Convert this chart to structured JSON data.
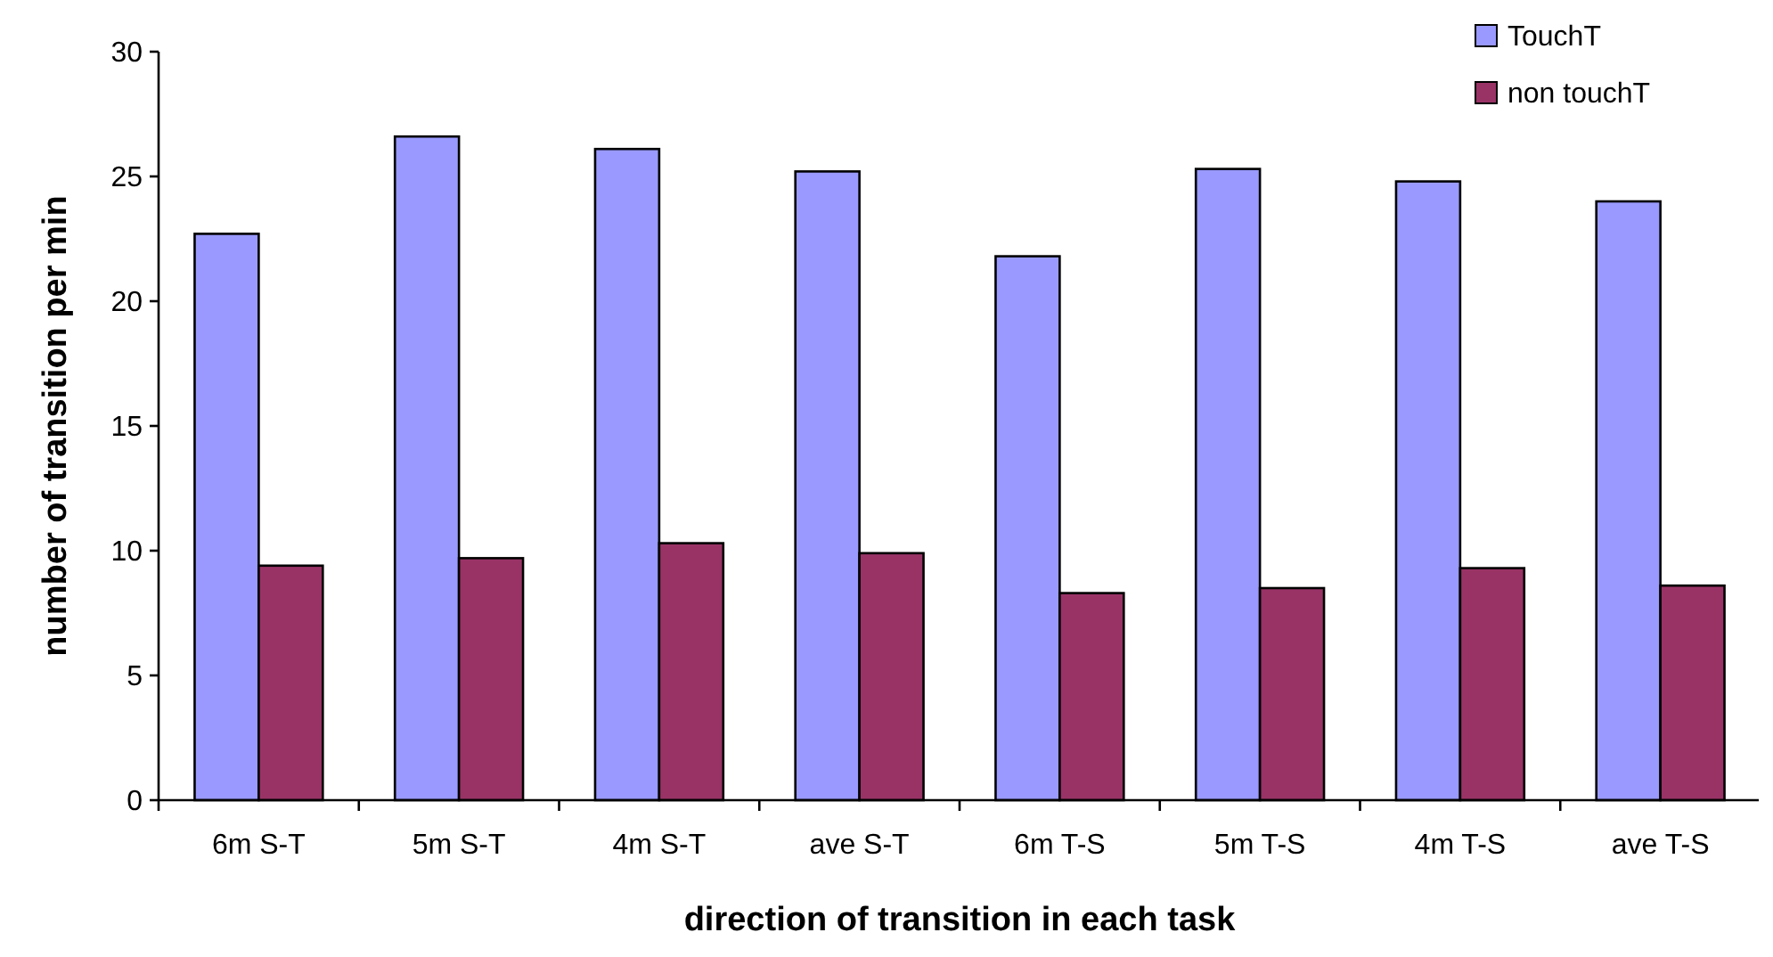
{
  "chart_data": {
    "type": "bar",
    "xlabel": "direction of transition in each task",
    "ylabel": "number of transition per min",
    "categories": [
      "6m S-T",
      "5m S-T",
      "4m S-T",
      "ave S-T",
      "6m T-S",
      "5m T-S",
      "4m T-S",
      "ave T-S"
    ],
    "series": [
      {
        "name": "TouchT",
        "color": "#9999ff",
        "values": [
          22.7,
          26.6,
          26.1,
          25.2,
          21.8,
          25.3,
          24.8,
          24.0
        ]
      },
      {
        "name": "non touchT",
        "color": "#993366",
        "values": [
          9.4,
          9.7,
          10.3,
          9.9,
          8.3,
          8.5,
          9.3,
          8.6
        ]
      }
    ],
    "ylim": [
      0,
      30
    ],
    "yticks": [
      0,
      5,
      10,
      15,
      20,
      25,
      30
    ],
    "grid": false,
    "legend": "top right"
  }
}
